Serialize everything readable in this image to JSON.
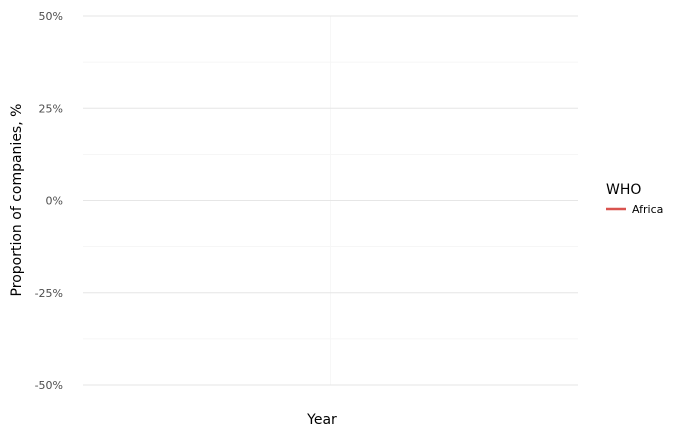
{
  "chart_data": {
    "type": "line",
    "title": "",
    "xlabel": "Year",
    "ylabel": "Proportion of companies, %",
    "ylim": [
      -50,
      50
    ],
    "y_ticks": [
      50,
      25,
      0,
      -25,
      -50
    ],
    "y_tick_labels": [
      "50%",
      "25%",
      "0%",
      "-25%",
      "-50%"
    ],
    "grid": true,
    "legend": {
      "title": "WHO",
      "placement": "right",
      "entries": [
        {
          "label": "Africa",
          "color": "#d9534f"
        }
      ]
    },
    "series": [
      {
        "name": "Africa",
        "color": "#d9534f",
        "x": [],
        "values": []
      }
    ]
  }
}
